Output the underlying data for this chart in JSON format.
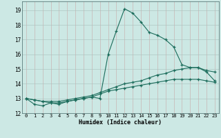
{
  "xlabel": "Humidex (Indice chaleur)",
  "bg_color": "#cce8e4",
  "grid_color": "#b0c8c4",
  "line_color": "#1a6b5a",
  "xlim": [
    -0.5,
    23.5
  ],
  "ylim": [
    12.0,
    19.6
  ],
  "yticks": [
    12,
    13,
    14,
    15,
    16,
    17,
    18,
    19
  ],
  "xticks": [
    0,
    1,
    2,
    3,
    4,
    5,
    6,
    7,
    8,
    9,
    10,
    11,
    12,
    13,
    14,
    15,
    16,
    17,
    18,
    19,
    20,
    21,
    22,
    23
  ],
  "series": [
    {
      "x": [
        0,
        1,
        2,
        3,
        4,
        5,
        6,
        7,
        8,
        9,
        10,
        11,
        12,
        13,
        14,
        15,
        16,
        17,
        18,
        19,
        20,
        21,
        22,
        23
      ],
      "y": [
        13.0,
        12.6,
        12.5,
        12.7,
        12.6,
        12.8,
        12.9,
        13.0,
        13.1,
        13.0,
        16.0,
        17.6,
        19.1,
        18.8,
        18.2,
        17.5,
        17.3,
        17.0,
        16.5,
        15.3,
        15.1,
        15.1,
        14.8,
        14.2
      ]
    },
    {
      "x": [
        0,
        1,
        2,
        3,
        4,
        5,
        6,
        7,
        8,
        9,
        10,
        11,
        12,
        13,
        14,
        15,
        16,
        17,
        18,
        19,
        20,
        21,
        22,
        23
      ],
      "y": [
        13.0,
        12.9,
        12.8,
        12.8,
        12.8,
        12.9,
        13.0,
        13.1,
        13.2,
        13.4,
        13.6,
        13.8,
        14.0,
        14.1,
        14.2,
        14.4,
        14.6,
        14.7,
        14.9,
        15.0,
        15.1,
        15.1,
        14.9,
        14.8
      ]
    },
    {
      "x": [
        0,
        1,
        2,
        3,
        4,
        5,
        6,
        7,
        8,
        9,
        10,
        11,
        12,
        13,
        14,
        15,
        16,
        17,
        18,
        19,
        20,
        21,
        22,
        23
      ],
      "y": [
        13.0,
        12.9,
        12.8,
        12.7,
        12.7,
        12.8,
        12.9,
        13.0,
        13.1,
        13.3,
        13.5,
        13.6,
        13.7,
        13.8,
        13.9,
        14.0,
        14.1,
        14.2,
        14.3,
        14.3,
        14.3,
        14.3,
        14.2,
        14.1
      ]
    }
  ]
}
